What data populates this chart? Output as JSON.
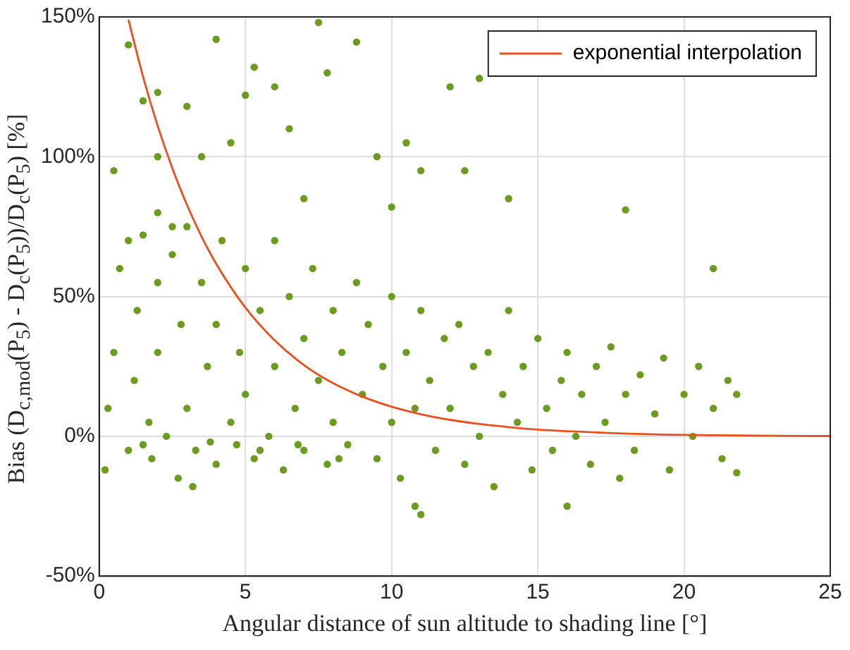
{
  "chart_data": {
    "type": "scatter",
    "xlabel": "Angular distance of sun altitude to shading line [°]",
    "ylabel": "Bias (D$_{c,mod}$(P$_{5}$) - D$_{c}$(P$_{5}$))/D$_{c}$(P$_{5}$) [%]",
    "xlim": [
      0,
      25
    ],
    "xticks": [
      0,
      5,
      10,
      15,
      20,
      25
    ],
    "ylim": [
      -50,
      150
    ],
    "yticks": [
      {
        "value": -50,
        "label": "-50%"
      },
      {
        "value": 0,
        "label": "0%"
      },
      {
        "value": 50,
        "label": "50%"
      },
      {
        "value": 100,
        "label": "100%"
      },
      {
        "value": 150,
        "label": "150%"
      }
    ],
    "grid": true,
    "legend": "top right",
    "series": [
      {
        "color": "#6b9c1f",
        "marker": "circle",
        "x": [
          1,
          1.5,
          0.5,
          2,
          3,
          4,
          5,
          7.5,
          7.8,
          8.8,
          5.3,
          6,
          3.5,
          4.5,
          6.5,
          9.5,
          12,
          13,
          10.5,
          11,
          12.5,
          18,
          21,
          10,
          14,
          7,
          2,
          1,
          2.5,
          0.2,
          0.3,
          0.5,
          0.7,
          1,
          1.2,
          1.3,
          1.5,
          1.7,
          1.8,
          2,
          2,
          2.3,
          2.5,
          2.7,
          2.8,
          3,
          3,
          3.3,
          3.5,
          3.7,
          4,
          4,
          4.2,
          4.5,
          4.7,
          4.8,
          5,
          5,
          5.3,
          5.5,
          5.8,
          6,
          6,
          6.3,
          6.5,
          6.7,
          7,
          7,
          7.3,
          7.5,
          7.8,
          8,
          8,
          8.3,
          8.5,
          8.8,
          9,
          9.2,
          9.5,
          9.7,
          10,
          10,
          10.3,
          10.5,
          10.8,
          11,
          11,
          11.3,
          11.5,
          11.8,
          12,
          12.3,
          12.5,
          12.8,
          13,
          13.3,
          13.5,
          13.8,
          14,
          14.3,
          14.5,
          14.8,
          15,
          15.3,
          15.5,
          15.8,
          16,
          16.3,
          16.5,
          16.8,
          17,
          17.3,
          17.5,
          17.8,
          18,
          18.3,
          18.5,
          19,
          19.3,
          19.5,
          20,
          20.3,
          20.5,
          21,
          21.3,
          21.5,
          21.8,
          21.8,
          16,
          10.8,
          3.2,
          2,
          1.5,
          3.8,
          5.5,
          6.8,
          8.2
        ],
        "values": [
          140,
          120,
          95,
          123,
          118,
          142,
          122,
          148,
          130,
          141,
          132,
          125,
          100,
          105,
          110,
          100,
          125,
          128,
          105,
          95,
          95,
          81,
          60,
          82,
          85,
          85,
          80,
          70,
          75,
          -12,
          10,
          30,
          60,
          -5,
          20,
          45,
          72,
          5,
          -8,
          55,
          30,
          0,
          65,
          -15,
          40,
          10,
          75,
          -5,
          55,
          25,
          -10,
          40,
          70,
          5,
          -3,
          30,
          60,
          15,
          -8,
          45,
          0,
          25,
          70,
          -12,
          50,
          10,
          35,
          -5,
          60,
          20,
          -10,
          45,
          5,
          30,
          -3,
          55,
          15,
          40,
          -8,
          25,
          5,
          50,
          -15,
          30,
          10,
          -28,
          45,
          20,
          -5,
          35,
          10,
          40,
          -10,
          25,
          0,
          30,
          -18,
          15,
          45,
          5,
          25,
          -12,
          35,
          10,
          -5,
          20,
          30,
          0,
          15,
          -10,
          25,
          5,
          32,
          -15,
          15,
          -5,
          22,
          8,
          28,
          -12,
          15,
          0,
          25,
          10,
          -8,
          20,
          15,
          -13,
          -25,
          -25,
          -18,
          100,
          -3,
          -2,
          -5,
          -3,
          -8
        ]
      },
      {
        "type": "line",
        "name": "exponential interpolation",
        "color": "#e8501e",
        "x": [
          1,
          1.5,
          2,
          2.5,
          3,
          3.5,
          4,
          5,
          6,
          7,
          8,
          9,
          10,
          11,
          12,
          13,
          14,
          15,
          17,
          19,
          21,
          23,
          25
        ],
        "values": [
          149,
          128.6,
          111,
          95.9,
          82.8,
          71.4,
          61.7,
          46,
          34.3,
          25.5,
          19,
          14.2,
          10.6,
          7.9,
          5.9,
          4.4,
          3.3,
          2.4,
          1.4,
          0.7,
          0.4,
          0.2,
          0.1
        ]
      }
    ]
  }
}
